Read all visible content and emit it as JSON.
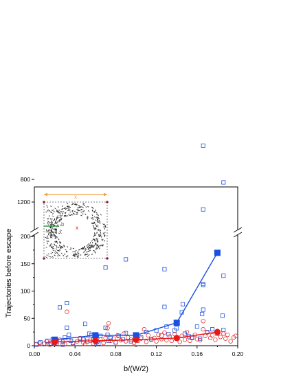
{
  "chart_data": {
    "type": "scatter",
    "title": "",
    "xlabel": "b/(W/2)",
    "ylabel": "Trajectories before escape",
    "xlim": [
      0,
      0.2
    ],
    "ylim_lower": [
      0,
      200
    ],
    "ylim_upper": [
      750,
      1350
    ],
    "broken_y_axis": true,
    "x_ticks": [
      "0.00",
      "0.04",
      "0.08",
      "0.12",
      "0.16",
      "0.20"
    ],
    "y_ticks_lower": [
      "0",
      "50",
      "100",
      "150",
      "200"
    ],
    "y_ticks_upper": [
      "800",
      "1200"
    ],
    "grid": false,
    "colors": {
      "blue": "#1a4fe0",
      "red": "#e81818",
      "orange": "#f0a040",
      "green": "#2a9a40"
    },
    "series": [
      {
        "marker": "open-square",
        "color": "#1a4fe0",
        "points": [
          [
            0.002,
            2
          ],
          [
            0.006,
            6
          ],
          [
            0.013,
            3
          ],
          [
            0.013,
            9
          ],
          [
            0.016,
            4
          ],
          [
            0.018,
            11
          ],
          [
            0.02,
            5
          ],
          [
            0.022,
            7
          ],
          [
            0.025,
            70
          ],
          [
            0.028,
            2
          ],
          [
            0.03,
            15
          ],
          [
            0.032,
            78
          ],
          [
            0.032,
            33
          ],
          [
            0.034,
            20
          ],
          [
            0.036,
            9
          ],
          [
            0.038,
            5
          ],
          [
            0.045,
            13
          ],
          [
            0.048,
            12
          ],
          [
            0.05,
            40
          ],
          [
            0.052,
            8
          ],
          [
            0.054,
            22
          ],
          [
            0.056,
            19
          ],
          [
            0.058,
            11
          ],
          [
            0.061,
            6
          ],
          [
            0.063,
            4
          ],
          [
            0.065,
            18
          ],
          [
            0.07,
            33
          ],
          [
            0.07,
            143
          ],
          [
            0.072,
            20
          ],
          [
            0.073,
            9
          ],
          [
            0.075,
            14
          ],
          [
            0.08,
            6
          ],
          [
            0.083,
            18
          ],
          [
            0.087,
            12
          ],
          [
            0.09,
            158
          ],
          [
            0.09,
            23
          ],
          [
            0.095,
            8
          ],
          [
            0.1,
            19
          ],
          [
            0.105,
            15
          ],
          [
            0.11,
            25
          ],
          [
            0.115,
            12
          ],
          [
            0.12,
            28
          ],
          [
            0.125,
            19
          ],
          [
            0.128,
            140
          ],
          [
            0.128,
            71
          ],
          [
            0.13,
            35
          ],
          [
            0.132,
            21
          ],
          [
            0.138,
            28
          ],
          [
            0.14,
            32
          ],
          [
            0.145,
            61
          ],
          [
            0.146,
            76
          ],
          [
            0.148,
            22
          ],
          [
            0.152,
            17
          ],
          [
            0.155,
            14
          ],
          [
            0.16,
            35
          ],
          [
            0.163,
            13
          ],
          [
            0.165,
            58
          ],
          [
            0.166,
            205
          ],
          [
            0.166,
            113
          ],
          [
            0.166,
            111
          ],
          [
            0.166,
            66
          ],
          [
            0.166,
            1330
          ],
          [
            0.17,
            25
          ],
          [
            0.175,
            30
          ],
          [
            0.18,
            22
          ],
          [
            0.185,
            55
          ],
          [
            0.186,
            128
          ],
          [
            0.186,
            29
          ],
          [
            0.186,
            854
          ]
        ]
      },
      {
        "marker": "open-circle",
        "color": "#e81818",
        "points": [
          [
            0.002,
            3
          ],
          [
            0.005,
            5
          ],
          [
            0.01,
            4
          ],
          [
            0.012,
            8
          ],
          [
            0.015,
            2
          ],
          [
            0.018,
            6
          ],
          [
            0.02,
            9
          ],
          [
            0.022,
            4
          ],
          [
            0.025,
            11
          ],
          [
            0.028,
            7
          ],
          [
            0.03,
            3
          ],
          [
            0.032,
            62
          ],
          [
            0.034,
            10
          ],
          [
            0.038,
            5
          ],
          [
            0.042,
            8
          ],
          [
            0.045,
            14
          ],
          [
            0.048,
            6
          ],
          [
            0.05,
            3
          ],
          [
            0.052,
            12
          ],
          [
            0.055,
            9
          ],
          [
            0.058,
            4
          ],
          [
            0.06,
            16
          ],
          [
            0.062,
            7
          ],
          [
            0.065,
            11
          ],
          [
            0.068,
            5
          ],
          [
            0.07,
            14
          ],
          [
            0.072,
            32
          ],
          [
            0.073,
            41
          ],
          [
            0.075,
            9
          ],
          [
            0.078,
            13
          ],
          [
            0.08,
            6
          ],
          [
            0.082,
            19
          ],
          [
            0.085,
            10
          ],
          [
            0.088,
            22
          ],
          [
            0.09,
            8
          ],
          [
            0.092,
            15
          ],
          [
            0.095,
            11
          ],
          [
            0.098,
            5
          ],
          [
            0.1,
            17
          ],
          [
            0.102,
            9
          ],
          [
            0.105,
            13
          ],
          [
            0.108,
            30
          ],
          [
            0.11,
            7
          ],
          [
            0.112,
            19
          ],
          [
            0.115,
            11
          ],
          [
            0.118,
            14
          ],
          [
            0.12,
            8
          ],
          [
            0.122,
            20
          ],
          [
            0.125,
            12
          ],
          [
            0.128,
            24
          ],
          [
            0.13,
            10
          ],
          [
            0.133,
            17
          ],
          [
            0.135,
            9
          ],
          [
            0.138,
            21
          ],
          [
            0.14,
            13
          ],
          [
            0.143,
            7
          ],
          [
            0.145,
            18
          ],
          [
            0.148,
            11
          ],
          [
            0.15,
            25
          ],
          [
            0.153,
            9
          ],
          [
            0.155,
            15
          ],
          [
            0.158,
            20
          ],
          [
            0.16,
            12
          ],
          [
            0.163,
            10
          ],
          [
            0.166,
            45
          ],
          [
            0.166,
            30
          ],
          [
            0.168,
            18
          ],
          [
            0.17,
            24
          ],
          [
            0.173,
            14
          ],
          [
            0.175,
            19
          ],
          [
            0.178,
            11
          ],
          [
            0.18,
            27
          ],
          [
            0.183,
            16
          ],
          [
            0.186,
            22
          ],
          [
            0.188,
            13
          ],
          [
            0.19,
            20
          ],
          [
            0.193,
            8
          ],
          [
            0.196,
            15
          ],
          [
            0.198,
            18
          ]
        ]
      },
      {
        "marker": "filled-square-line",
        "color": "#1a4fe0",
        "points": [
          [
            0.02,
            11
          ],
          [
            0.06,
            19
          ],
          [
            0.1,
            19
          ],
          [
            0.14,
            42
          ],
          [
            0.18,
            170
          ]
        ]
      },
      {
        "marker": "filled-circle-line",
        "color": "#e81818",
        "points": [
          [
            0.02,
            7
          ],
          [
            0.06,
            9
          ],
          [
            0.1,
            11
          ],
          [
            0.14,
            14
          ],
          [
            0.18,
            25
          ]
        ]
      }
    ],
    "inset": {
      "labels": [
        "x",
        "b",
        "x"
      ]
    }
  }
}
